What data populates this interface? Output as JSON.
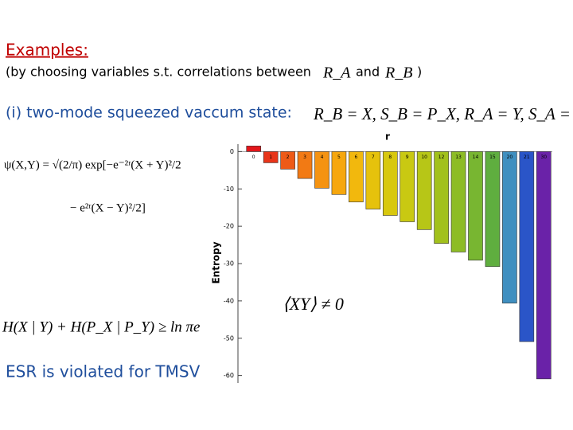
{
  "slide": {
    "heading": "Examples:",
    "intro": "(by choosing variables s.t. correlations between",
    "ra": "R_A",
    "and": "and",
    "rb": "R_B",
    "close": ")",
    "case": "(i)   two-mode squeezed vaccum state:",
    "assignment": "R_B = X, S_B = P_X,  R_A = Y, S_A = P_Y",
    "wavefunction_1": "ψ(X,Y)  =  √(2/π)  exp[−e⁻²ʳ(X + Y)²/2",
    "wavefunction_2": "− e²ʳ(X − Y)²/2]",
    "inequality": "H(X | Y) + H(P_X | P_Y) ≥ ln πe",
    "correlation": "⟨XY⟩ ≠ 0",
    "conclusion": "ESR is violated for TMSV"
  },
  "chart_data": {
    "type": "bar",
    "xlabel": "r",
    "ylabel": "Entropy",
    "categories": [
      "0",
      "1",
      "2",
      "3",
      "4",
      "5",
      "6",
      "7",
      "8",
      "9",
      "10",
      "12",
      "13",
      "14",
      "15",
      "20",
      "21",
      "30"
    ],
    "values": [
      1.5,
      -3,
      -4.7,
      -7.2,
      -9.8,
      -11.5,
      -13.5,
      -15.4,
      -17.1,
      -18.8,
      -20.9,
      -24.6,
      -26.9,
      -29.1,
      -30.8,
      -40.6,
      -50.9,
      -60.9
    ],
    "colors": [
      "#e3161b",
      "#e8351a",
      "#ee5a17",
      "#f27a14",
      "#f59311",
      "#f6a70e",
      "#f2b80d",
      "#e6c20c",
      "#d8c80e",
      "#c9c912",
      "#b7c617",
      "#a2c11c",
      "#8dbc25",
      "#78b631",
      "#5fae3f",
      "#3f8fc0",
      "#2a55c8",
      "#6a22a8"
    ],
    "ylim": [
      -62,
      2
    ],
    "yticks": [
      0,
      -10,
      -20,
      -30,
      -40,
      -50,
      -60
    ]
  }
}
